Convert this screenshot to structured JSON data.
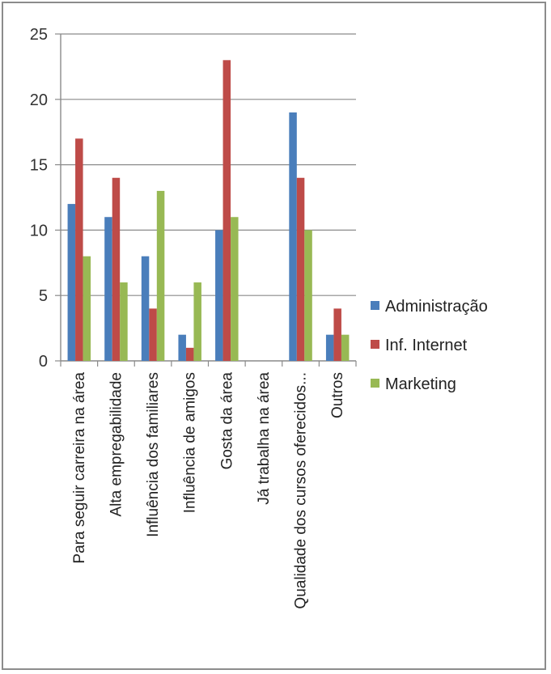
{
  "chart_data": {
    "type": "bar",
    "title": "",
    "xlabel": "",
    "ylabel": "",
    "ylim": [
      0,
      25
    ],
    "yticks": [
      0,
      5,
      10,
      15,
      20,
      25
    ],
    "grid": true,
    "legend_position": "right",
    "categories": [
      "Para seguir carreira na área",
      "Alta empregabilidade",
      "Influência dos familiares",
      "Influência de amigos",
      "Gosta da área",
      "Já trabalha na área",
      "Qualidade dos cursos oferecidos...",
      "Outros"
    ],
    "series": [
      {
        "name": "Administração",
        "color": "#4a7ebb",
        "values": [
          12,
          11,
          8,
          2,
          10,
          0,
          19,
          2
        ]
      },
      {
        "name": "Inf. Internet",
        "color": "#be4b48",
        "values": [
          17,
          14,
          4,
          1,
          23,
          0,
          14,
          4
        ]
      },
      {
        "name": "Marketing",
        "color": "#98b954",
        "values": [
          8,
          6,
          13,
          6,
          11,
          0,
          10,
          2
        ]
      }
    ]
  }
}
